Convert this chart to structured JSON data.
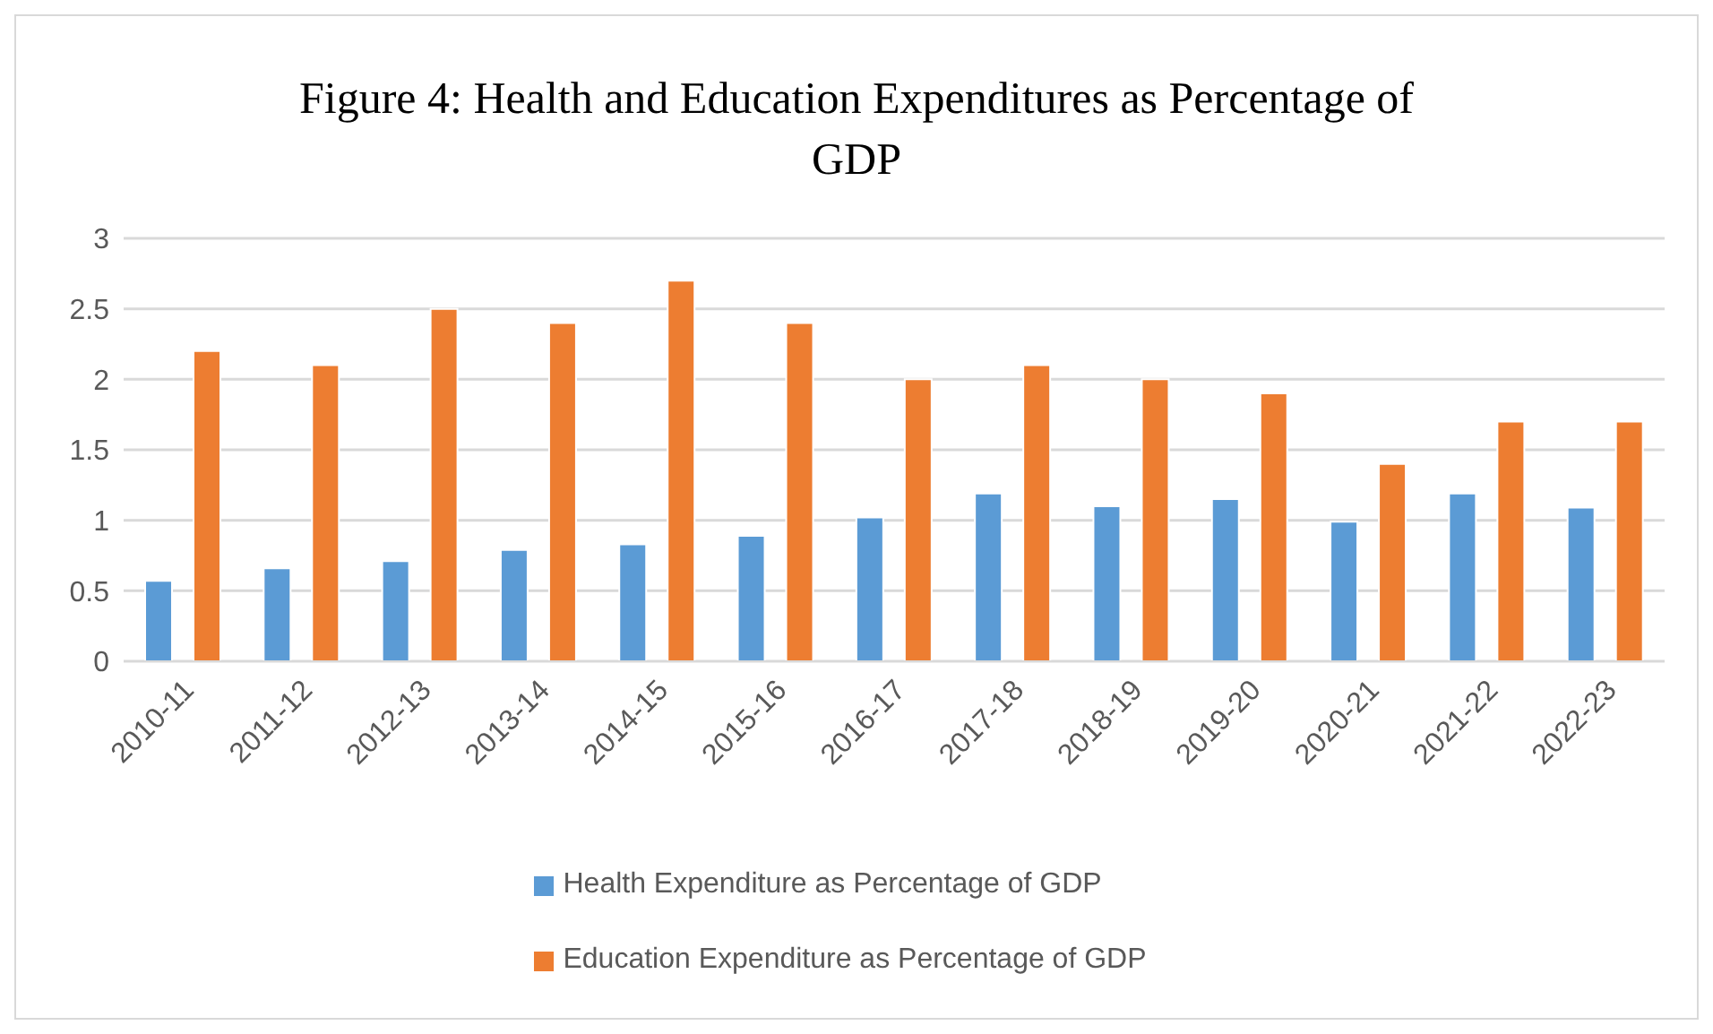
{
  "chart_data": {
    "type": "bar",
    "title": "Figure 4: Health and Education Expenditures as Percentage of GDP",
    "categories": [
      "2010-11",
      "2011-12",
      "2012-13",
      "2013-14",
      "2014-15",
      "2015-16",
      "2016-17",
      "2017-18",
      "2018-19",
      "2019-20",
      "2020-21",
      "2021-22",
      "2022-23"
    ],
    "series": [
      {
        "name": "Health Expenditure as Percentage of GDP",
        "color": "#5b9bd5",
        "values": [
          0.57,
          0.66,
          0.71,
          0.79,
          0.83,
          0.89,
          1.02,
          1.19,
          1.1,
          1.15,
          0.99,
          1.19,
          1.09
        ]
      },
      {
        "name": "Education Expenditure as Percentage of GDP",
        "color": "#ed7d31",
        "values": [
          2.2,
          2.1,
          2.5,
          2.4,
          2.7,
          2.4,
          2.0,
          2.1,
          2.0,
          1.9,
          1.4,
          1.7,
          1.7
        ]
      }
    ],
    "ylim": [
      0,
      3
    ],
    "yticks": [
      0,
      0.5,
      1,
      1.5,
      2,
      2.5,
      3
    ],
    "grid": "y",
    "legend": "bottom"
  }
}
